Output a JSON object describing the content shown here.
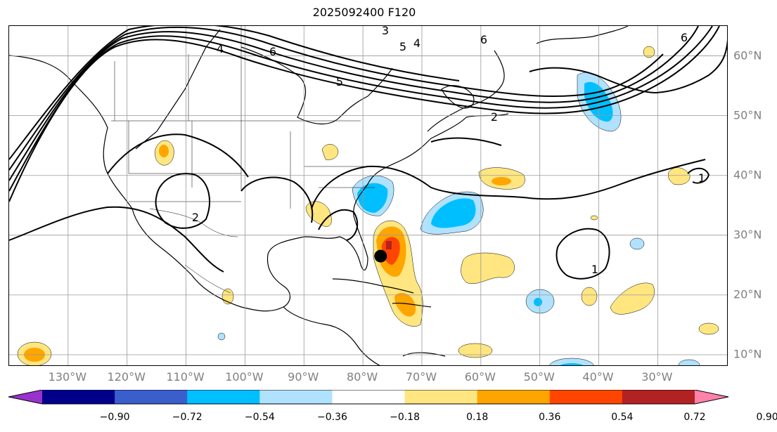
{
  "title": "2025092400 F120",
  "map": {
    "lon_range": [
      -140,
      -18
    ],
    "lat_range": [
      8,
      65
    ],
    "grid": true,
    "lon_labels": [
      "130°W",
      "120°W",
      "110°W",
      "100°W",
      "90°W",
      "80°W",
      "70°W",
      "60°W",
      "50°W",
      "40°W",
      "30°W"
    ],
    "lon_values": [
      -130,
      -120,
      -110,
      -100,
      -90,
      -80,
      -70,
      -60,
      -50,
      -40,
      -30
    ],
    "lat_labels": [
      "10°N",
      "20°N",
      "30°N",
      "40°N",
      "50°N",
      "60°N"
    ],
    "lat_values": [
      10,
      20,
      30,
      40,
      50,
      60
    ],
    "contour_labels": [
      "4",
      "6",
      "3",
      "5",
      "4",
      "6",
      "6",
      "5",
      "2",
      "2",
      "1",
      "1"
    ],
    "storm_marker": {
      "lon": -77,
      "lat": 26.5
    }
  },
  "colorbar": {
    "levels": [
      "−0.90",
      "−0.72",
      "−0.54",
      "−0.36",
      "−0.18",
      "0.18",
      "0.36",
      "0.54",
      "0.72",
      "0.90"
    ],
    "colors": [
      "#9932cc",
      "#00008b",
      "#3a5fcd",
      "#00bfff",
      "#b0e2ff",
      "#ffffff",
      "#ffe680",
      "#ffa500",
      "#ff4500",
      "#b22222",
      "#ff82ab"
    ]
  }
}
